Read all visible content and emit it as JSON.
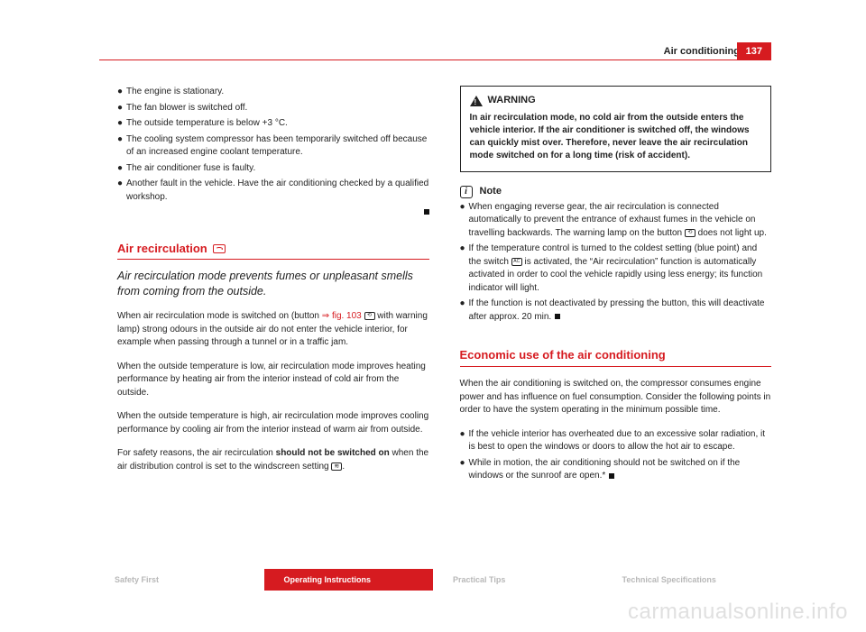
{
  "page": {
    "section": "Air conditioning",
    "number": "137"
  },
  "left": {
    "bullets": [
      "The engine is stationary.",
      "The fan blower is switched off.",
      "The outside temperature is below +3 °C.",
      "The cooling system compressor has been temporarily switched off because of an increased engine coolant temperature.",
      "The air conditioner fuse is faulty.",
      "Another fault in the vehicle. Have the air conditioning checked by a qualified workshop."
    ],
    "heading": "Air recirculation",
    "subtitle": "Air recirculation mode prevents fumes or unpleasant smells from coming from the outside.",
    "p1a": "When air recirculation mode is switched on (button ",
    "p1_fig": "⇒ fig. 103",
    "p1b": " with warning lamp) strong odours in the outside air do not enter the vehicle interior, for example when passing through a tunnel or in a traffic jam.",
    "p2": "When the outside temperature is low, air recirculation mode improves heating performance by heating air from the interior instead of cold air from the outside.",
    "p3": "When the outside temperature is high, air recirculation mode improves cooling performance by cooling air from the interior instead of warm air from outside.",
    "p4a": "For safety reasons, the air recirculation ",
    "p4_strong": "should not be switched on",
    "p4b": " when the air distribution control is set to the windscreen setting "
  },
  "right": {
    "warning_title": "WARNING",
    "warning_body": "In air recirculation mode, no cold air from the outside enters the vehicle interior. If the air conditioner is switched off, the windows can quickly mist over. Therefore, never leave the air recirculation mode switched on for a long time (risk of accident).",
    "note_title": "Note",
    "note1a": "When engaging reverse gear, the air recirculation is connected automatically to prevent the entrance of exhaust fumes in the vehicle on travelling backwards. The warning lamp on the button ",
    "note1b": " does not light up.",
    "note2a": "If the temperature control is turned to the coldest setting (blue point) and the switch ",
    "note2b": " is activated, the “Air recirculation” function is automatically activated in order to cool the vehicle rapidly using less energy; its function indicator will light.",
    "note3": "If the function is not deactivated by pressing the button, this will deactivate after approx. 20 min.",
    "heading2": "Economic use of the air conditioning",
    "eco_intro": "When the air conditioning is switched on, the compressor consumes engine power and has influence on fuel consumption. Consider the following points in order to have the system operating in the minimum possible time.",
    "eco1": "If the vehicle interior has overheated due to an excessive solar radiation, it is best to open the windows or doors to allow the hot air to escape.",
    "eco2": "While in motion, the air conditioning should not be switched on if the windows or the sunroof are open.*"
  },
  "footer": {
    "t1": "Safety First",
    "t2": "Operating Instructions",
    "t3": "Practical Tips",
    "t4": "Technical Specifications"
  },
  "watermark": "carmanualsonline.info"
}
